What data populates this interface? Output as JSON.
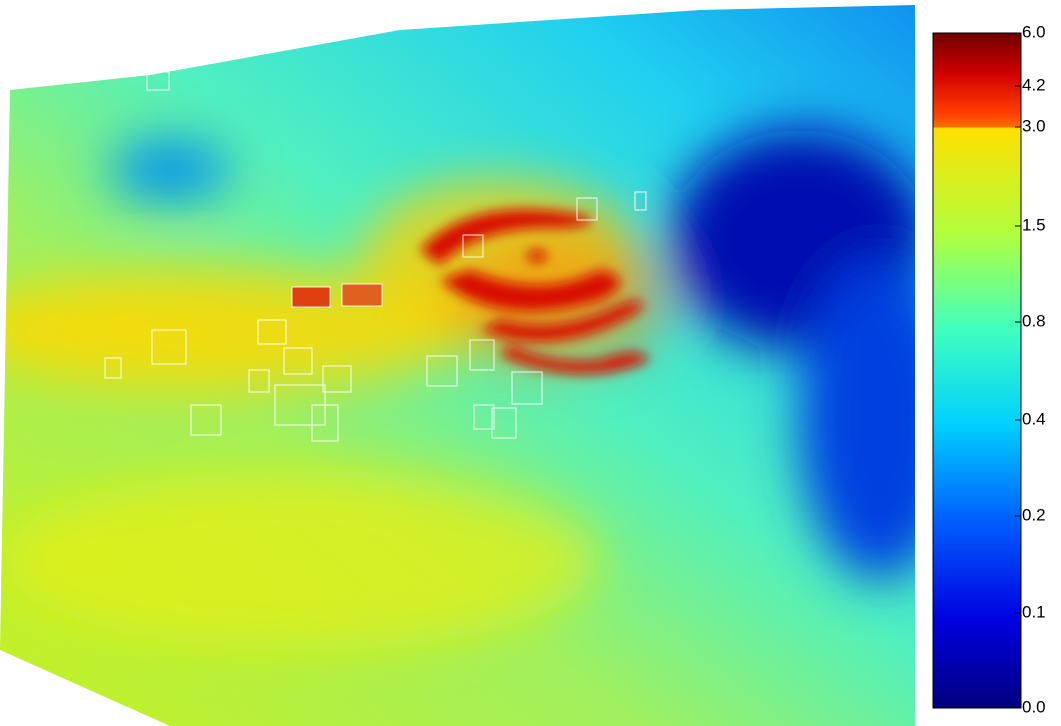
{
  "chart_data": {
    "type": "heatmap",
    "colorbar_ticks": [
      {
        "value": 0,
        "label": "0.0"
      },
      0.1,
      0.2,
      0.4,
      0.8,
      1.5,
      {
        "value": 3,
        "label": "3.0"
      },
      4.2,
      {
        "value": 6,
        "label": "6.0"
      }
    ]
  }
}
